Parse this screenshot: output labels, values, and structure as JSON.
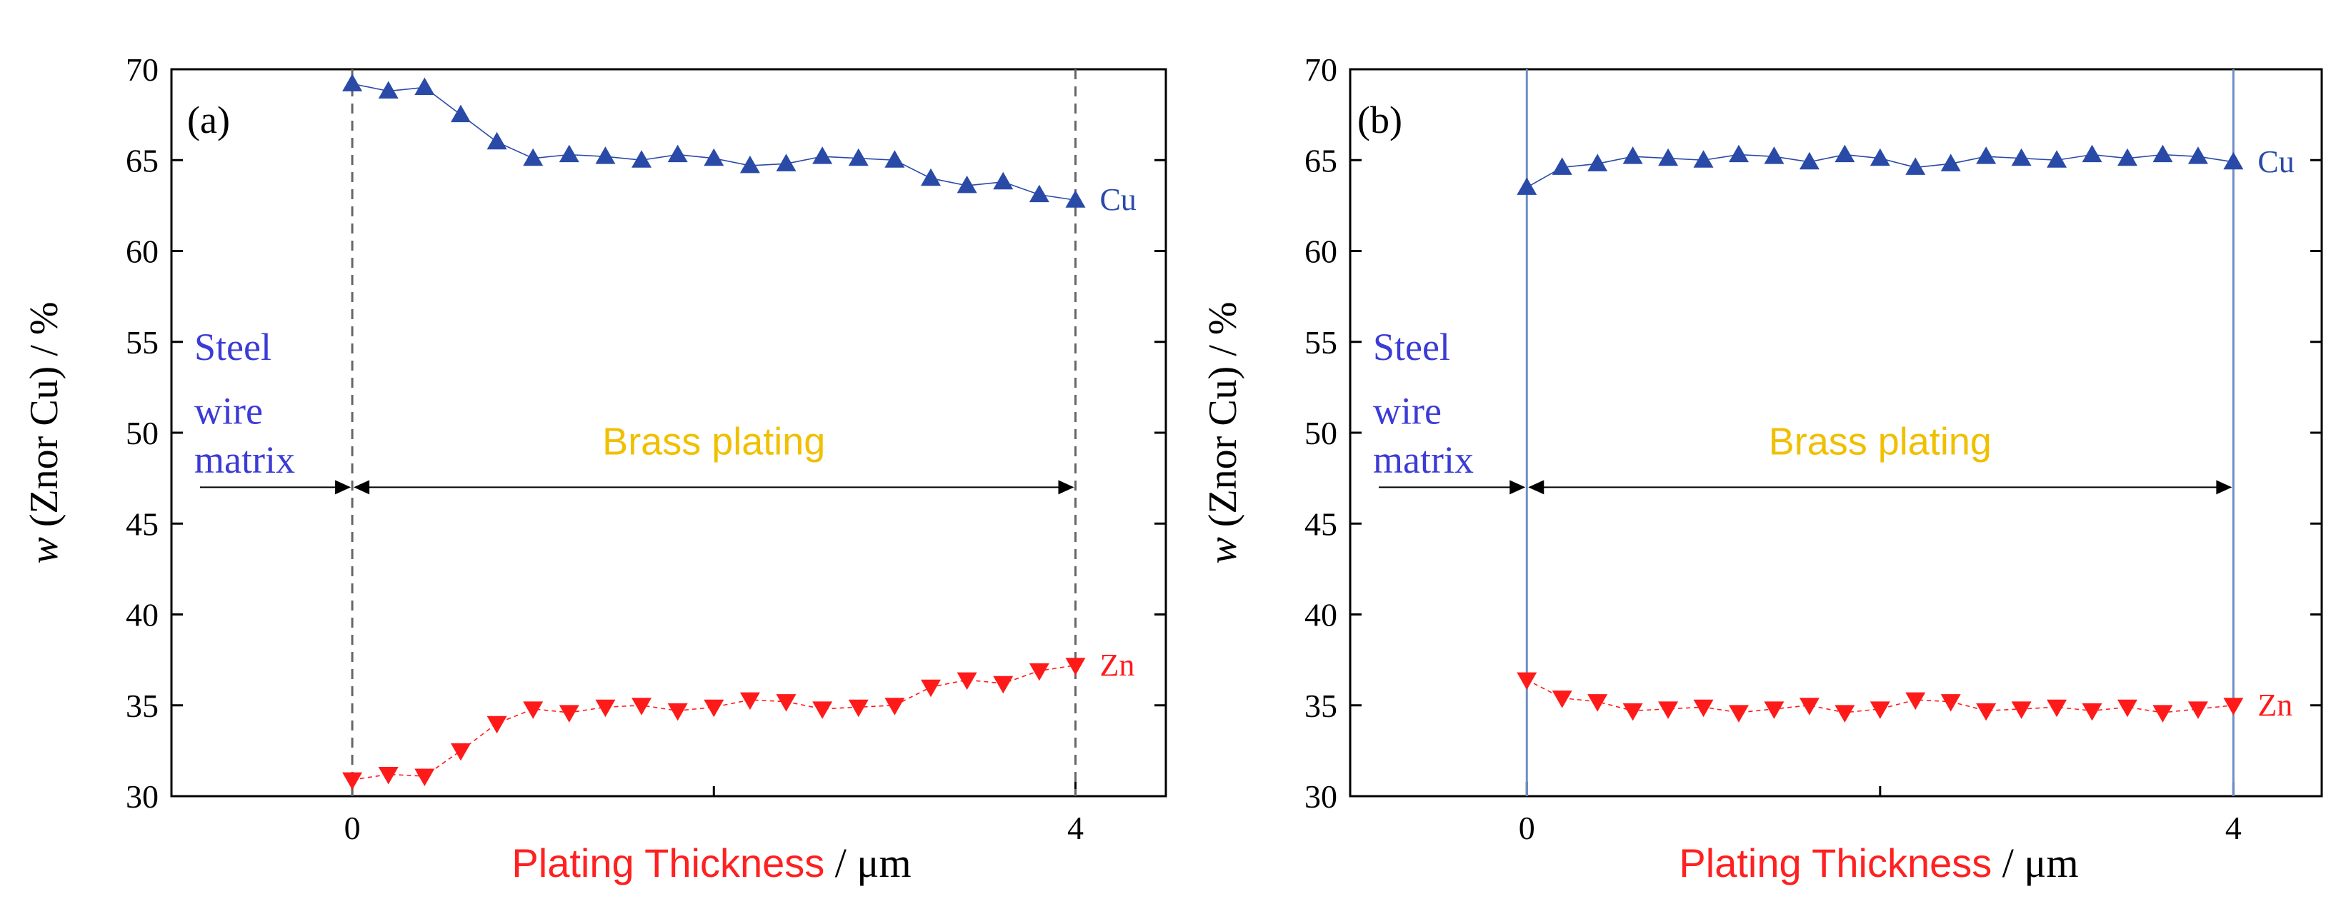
{
  "colors": {
    "cu": "#2a4aa8",
    "zn": "#ff1a1a",
    "steel_text": "#3b3bd6",
    "brass_text": "#f0c000",
    "axis_label_red": "#ff2020",
    "boundary_a": "#666666",
    "boundary_b": "#6d8fc8"
  },
  "chart_data": [
    {
      "type": "line",
      "panel_label": "(a)",
      "ylabel_italic": "w",
      "ylabel_rest": " (Znor Cu) / %",
      "xlabel_red": "Plating Thickness",
      "xlabel_black": " / μm",
      "ylim": [
        30,
        70
      ],
      "xlim": [
        -1.0,
        4.5
      ],
      "yticks": [
        "30",
        "35",
        "40",
        "45",
        "50",
        "55",
        "60",
        "65",
        "70"
      ],
      "xticks": [
        "0",
        "4"
      ],
      "boundary_style": "dashed",
      "boundaries": [
        0,
        4
      ],
      "region_left": [
        "Steel",
        "wire",
        "matrix"
      ],
      "region_right": "Brass plating",
      "series": [
        {
          "name": "Cu",
          "marker": "triangle-up",
          "x": [
            0,
            0.2,
            0.4,
            0.6,
            0.8,
            1.0,
            1.2,
            1.4,
            1.6,
            1.8,
            2.0,
            2.2,
            2.4,
            2.6,
            2.8,
            3.0,
            3.2,
            3.4,
            3.6,
            3.8,
            4.0
          ],
          "values": [
            69.2,
            68.8,
            69.0,
            67.5,
            66.0,
            65.1,
            65.3,
            65.2,
            65.0,
            65.3,
            65.1,
            64.7,
            64.8,
            65.2,
            65.1,
            65.0,
            64.0,
            63.6,
            63.8,
            63.1,
            62.8
          ]
        },
        {
          "name": "Zn",
          "marker": "triangle-down",
          "x": [
            0,
            0.2,
            0.4,
            0.6,
            0.8,
            1.0,
            1.2,
            1.4,
            1.6,
            1.8,
            2.0,
            2.2,
            2.4,
            2.6,
            2.8,
            3.0,
            3.2,
            3.4,
            3.6,
            3.8,
            4.0
          ],
          "values": [
            30.9,
            31.2,
            31.1,
            32.5,
            34.0,
            34.8,
            34.6,
            34.9,
            35.0,
            34.7,
            34.9,
            35.3,
            35.2,
            34.8,
            34.9,
            35.0,
            36.0,
            36.4,
            36.2,
            36.9,
            37.2
          ]
        }
      ]
    },
    {
      "type": "line",
      "panel_label": "(b)",
      "ylabel_italic": "w",
      "ylabel_rest": " (Znor Cu) / %",
      "xlabel_red": "Plating Thickness",
      "xlabel_black": " / μm",
      "ylim": [
        30,
        70
      ],
      "xlim": [
        -1.0,
        4.5
      ],
      "yticks": [
        "30",
        "35",
        "40",
        "45",
        "50",
        "55",
        "60",
        "65",
        "70"
      ],
      "xticks": [
        "0",
        "4"
      ],
      "boundary_style": "solid",
      "boundaries": [
        0,
        4
      ],
      "region_left": [
        "Steel",
        "wire",
        "matrix"
      ],
      "region_right": "Brass plating",
      "series": [
        {
          "name": "Cu",
          "marker": "triangle-up",
          "x": [
            0,
            0.2,
            0.4,
            0.6,
            0.8,
            1.0,
            1.2,
            1.4,
            1.6,
            1.8,
            2.0,
            2.2,
            2.4,
            2.6,
            2.8,
            3.0,
            3.2,
            3.4,
            3.6,
            3.8,
            4.0
          ],
          "values": [
            63.5,
            64.6,
            64.8,
            65.2,
            65.1,
            65.0,
            65.3,
            65.2,
            64.9,
            65.3,
            65.1,
            64.6,
            64.8,
            65.2,
            65.1,
            65.0,
            65.3,
            65.1,
            65.3,
            65.2,
            64.9
          ]
        },
        {
          "name": "Zn",
          "marker": "triangle-down",
          "x": [
            0,
            0.2,
            0.4,
            0.6,
            0.8,
            1.0,
            1.2,
            1.4,
            1.6,
            1.8,
            2.0,
            2.2,
            2.4,
            2.6,
            2.8,
            3.0,
            3.2,
            3.4,
            3.6,
            3.8,
            4.0
          ],
          "values": [
            36.4,
            35.4,
            35.2,
            34.7,
            34.8,
            34.9,
            34.6,
            34.8,
            35.0,
            34.6,
            34.8,
            35.3,
            35.2,
            34.7,
            34.8,
            34.9,
            34.7,
            34.9,
            34.6,
            34.8,
            35.0
          ]
        }
      ]
    }
  ]
}
